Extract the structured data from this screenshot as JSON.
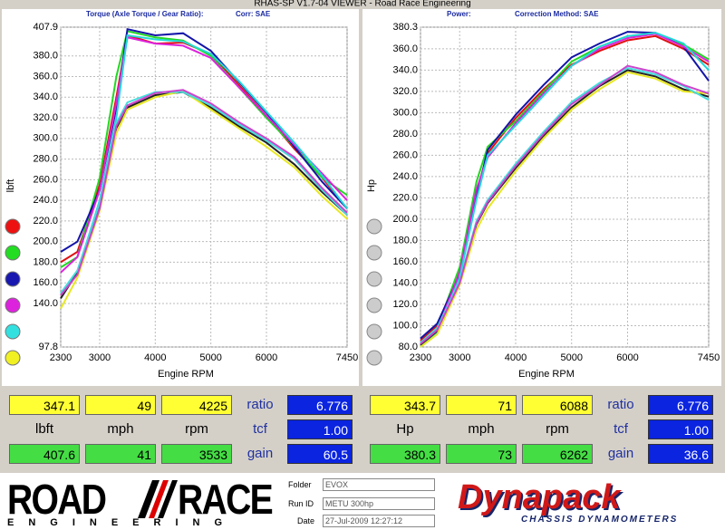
{
  "header": {
    "title": "RHAS-SP V1.7-04  VIEWER - Road Race Engineering"
  },
  "chart_data": [
    {
      "type": "line",
      "title": "Torque (Axle Torque / Gear Ratio):",
      "subtitle": "Corr: SAE",
      "x_label": "Engine RPM",
      "y_label": "lbft",
      "x": [
        2300,
        2600,
        3000,
        3300,
        3500,
        4000,
        4500,
        5000,
        5500,
        6000,
        6500,
        7000,
        7450
      ],
      "xlim": [
        2300,
        7450
      ],
      "xticks": [
        2300,
        3000,
        4000,
        5000,
        6000,
        7450
      ],
      "ylim": [
        97.8,
        407.9
      ],
      "yticks": [
        97.8,
        {
          "value": 140,
          "label": "140.0"
        },
        {
          "value": 160,
          "label": "160.0"
        },
        {
          "value": 180,
          "label": "180.0"
        },
        {
          "value": 200,
          "label": "200.0"
        },
        {
          "value": 220,
          "label": "220.0"
        },
        {
          "value": 240,
          "label": "240.0"
        },
        {
          "value": 260,
          "label": "260.0"
        },
        {
          "value": 280,
          "label": "280.0"
        },
        {
          "value": 300,
          "label": "300.0"
        },
        {
          "value": 320,
          "label": "320.0"
        },
        {
          "value": 340,
          "label": "340.0"
        },
        {
          "value": 360,
          "label": "360.0"
        },
        {
          "value": 380,
          "label": "380.0"
        },
        407.9
      ],
      "grid": true,
      "series": [
        {
          "color": "#e01010",
          "values": [
            180,
            190,
            255,
            340,
            400,
            392,
            393,
            382,
            352,
            322,
            290,
            262,
            232
          ]
        },
        {
          "color": "#22d822",
          "values": [
            175,
            185,
            262,
            360,
            404,
            398,
            395,
            380,
            350,
            320,
            292,
            262,
            245
          ]
        },
        {
          "color": "#1414a8",
          "values": [
            190,
            200,
            250,
            330,
            406,
            400,
            402,
            385,
            355,
            325,
            292,
            258,
            232
          ]
        },
        {
          "color": "#dd22dd",
          "values": [
            170,
            185,
            250,
            335,
            398,
            392,
            390,
            378,
            350,
            322,
            294,
            266,
            240
          ]
        },
        {
          "color": "#22d8d8",
          "values": [
            150,
            170,
            240,
            320,
            400,
            396,
            394,
            382,
            356,
            326,
            296,
            264,
            232
          ]
        },
        {
          "color": "#222222",
          "values": [
            145,
            170,
            235,
            310,
            330,
            342,
            345,
            330,
            312,
            296,
            275,
            248,
            226
          ]
        },
        {
          "color": "#e8e822",
          "values": [
            135,
            165,
            230,
            305,
            328,
            340,
            346,
            328,
            310,
            292,
            272,
            244,
            222
          ]
        },
        {
          "color": "#44dddd",
          "values": [
            150,
            172,
            238,
            315,
            335,
            345,
            345,
            332,
            314,
            298,
            280,
            250,
            226
          ]
        },
        {
          "color": "#cc44cc",
          "values": [
            148,
            168,
            232,
            312,
            332,
            344,
            347,
            334,
            316,
            300,
            282,
            252,
            228
          ]
        }
      ]
    },
    {
      "type": "line",
      "title": "Power:",
      "subtitle": "Correction Method: SAE",
      "x_label": "Engine RPM",
      "y_label": "Hp",
      "x": [
        2300,
        2600,
        3000,
        3300,
        3500,
        4000,
        4500,
        5000,
        5500,
        6000,
        6500,
        7000,
        7450
      ],
      "xlim": [
        2300,
        7450
      ],
      "xticks": [
        2300,
        3000,
        4000,
        5000,
        6000,
        7450
      ],
      "ylim": [
        80,
        380.3
      ],
      "yticks": [
        {
          "value": 80,
          "label": "80.0"
        },
        {
          "value": 100,
          "label": "100.0"
        },
        {
          "value": 120,
          "label": "120.0"
        },
        {
          "value": 140,
          "label": "140.0"
        },
        {
          "value": 160,
          "label": "160.0"
        },
        {
          "value": 180,
          "label": "180.0"
        },
        {
          "value": 200,
          "label": "200.0"
        },
        {
          "value": 220,
          "label": "220.0"
        },
        {
          "value": 240,
          "label": "240.0"
        },
        {
          "value": 260,
          "label": "260.0"
        },
        {
          "value": 280,
          "label": "280.0"
        },
        {
          "value": 300,
          "label": "300.0"
        },
        {
          "value": 320,
          "label": "320.0"
        },
        {
          "value": 340,
          "label": "340.0"
        },
        {
          "value": 360,
          "label": "360.0"
        },
        380.3
      ],
      "grid": true,
      "series": [
        {
          "color": "#e01010",
          "values": [
            86,
            100,
            152,
            225,
            262,
            295,
            322,
            345,
            358,
            368,
            372,
            360,
            345
          ]
        },
        {
          "color": "#22d822",
          "values": [
            84,
            98,
            155,
            235,
            268,
            292,
            320,
            348,
            362,
            372,
            374,
            364,
            350
          ]
        },
        {
          "color": "#1414a8",
          "values": [
            88,
            102,
            148,
            220,
            265,
            298,
            326,
            352,
            365,
            376,
            375,
            362,
            330
          ]
        },
        {
          "color": "#dd22dd",
          "values": [
            82,
            96,
            150,
            228,
            258,
            290,
            318,
            344,
            360,
            370,
            374,
            362,
            348
          ]
        },
        {
          "color": "#22d8d8",
          "values": [
            80,
            94,
            145,
            218,
            260,
            288,
            316,
            344,
            362,
            372,
            375,
            365,
            340
          ]
        },
        {
          "color": "#222222",
          "values": [
            82,
            95,
            140,
            195,
            215,
            248,
            278,
            305,
            325,
            340,
            334,
            322,
            315
          ]
        },
        {
          "color": "#e8e822",
          "values": [
            80,
            92,
            138,
            190,
            210,
            245,
            276,
            303,
            322,
            338,
            332,
            320,
            318
          ]
        },
        {
          "color": "#44dddd",
          "values": [
            84,
            98,
            142,
            198,
            218,
            252,
            282,
            310,
            328,
            342,
            336,
            325,
            312
          ]
        },
        {
          "color": "#cc44cc",
          "values": [
            83,
            96,
            140,
            196,
            216,
            250,
            280,
            308,
            326,
            344,
            338,
            326,
            318
          ]
        }
      ]
    }
  ],
  "legend_colors": [
    "#ee1111",
    "#22dd22",
    "#1818b0",
    "#dd22dd",
    "#33e0e0",
    "#f0f022"
  ],
  "readouts": [
    {
      "rows": [
        [
          "347.1",
          "49",
          "4225",
          "ratio",
          "6.776"
        ],
        [
          "lbft",
          "mph",
          "rpm",
          "tcf",
          "1.00"
        ],
        [
          "407.6",
          "41",
          "3533",
          "gain",
          "60.5"
        ]
      ]
    },
    {
      "rows": [
        [
          "343.7",
          "71",
          "6088",
          "ratio",
          "6.776"
        ],
        [
          "Hp",
          "mph",
          "rpm",
          "tcf",
          "1.00"
        ],
        [
          "380.3",
          "73",
          "6262",
          "gain",
          "36.6"
        ]
      ]
    }
  ],
  "footer": {
    "logo_left": "ROAD",
    "logo_right": "RACE",
    "logo_sub": "ENGINEERING",
    "folder_label": "Folder",
    "folder": "EVOX",
    "run_label": "Run ID",
    "run": "METU 300hp",
    "date_label": "Date",
    "date": "27-Jul-2009  12:27:12",
    "brand": "Dynapack",
    "brand_sub": "CHASSIS DYNAMOMETERS"
  }
}
